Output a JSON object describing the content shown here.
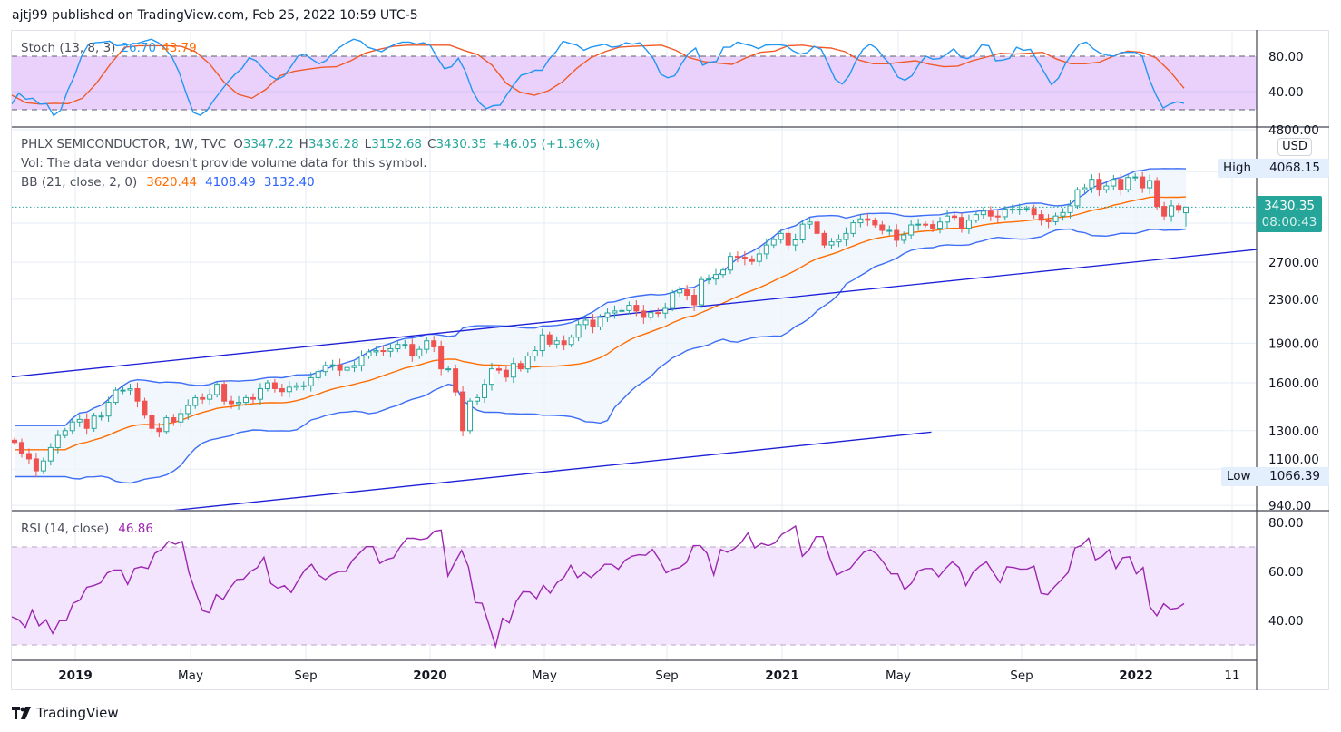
{
  "header": {
    "publisher_line": "ajtj99 published on TradingView.com, Feb 25, 2022 10:59 UTC-5"
  },
  "stoch": {
    "title": "Stoch (13, 8, 3)",
    "k_value": "26.70",
    "d_value": "43.79"
  },
  "main": {
    "symbol": "PHLX SEMICONDUCTOR, 1W, TVC",
    "o_label": "O",
    "o": "3347.22",
    "h_label": "H",
    "h": "3436.28",
    "l_label": "L",
    "l": "3152.68",
    "c_label": "C",
    "c": "3430.35",
    "change": "+46.05 (+1.36%)",
    "vol_note": "Vol: The data vendor doesn't provide volume data for this symbol.",
    "bb_title": "BB (21, close, 2, 0)",
    "bb_basis": "3620.44",
    "bb_upper": "4108.49",
    "bb_lower": "3132.40",
    "currency": "USD",
    "high_label": "High",
    "high_value": "4068.15",
    "low_label": "Low",
    "low_value": "1066.39",
    "last_price": "3430.35",
    "countdown": "08:00:43"
  },
  "rsi": {
    "title": "RSI (14, close)",
    "value": "46.86"
  },
  "time_axis": [
    {
      "label": "2019",
      "bold": true
    },
    {
      "label": "May"
    },
    {
      "label": "Sep"
    },
    {
      "label": "2020",
      "bold": true
    },
    {
      "label": "May"
    },
    {
      "label": "Sep"
    },
    {
      "label": "2021",
      "bold": true
    },
    {
      "label": "May"
    },
    {
      "label": "Sep"
    },
    {
      "label": "2022",
      "bold": true
    },
    {
      "label": "11"
    }
  ],
  "footer": {
    "brand": "TradingView"
  },
  "colors": {
    "up": "#26a69a",
    "down": "#ef5350",
    "bb_band": "#2962ff",
    "bb_basis": "#ff6d00",
    "stoch_k": "#2196f3",
    "stoch_d": "#ff6d00",
    "rsi": "#9c27b0",
    "trendline": "#1c1fd6"
  },
  "chart_data": [
    {
      "type": "candlestick",
      "title": "PHLX SEMICONDUCTOR, 1W, TVC",
      "scale": "log",
      "ylim": [
        940,
        4800
      ],
      "price_ticks": [
        "4800.00",
        "2700.00",
        "2300.00",
        "1900.00",
        "1600.00",
        "1300.00",
        "1100.00",
        "940.00"
      ],
      "grid_prices": [
        4800,
        4000,
        3200,
        2700,
        2300,
        1900,
        1600,
        1300,
        1100,
        940
      ],
      "x_range": "Nov 2018 – Feb 2022 (weekly)",
      "last_open": 3347.22,
      "last_high": 3436.28,
      "last_low": 3152.68,
      "closes": [
        1235,
        1177,
        1150,
        1092,
        1140,
        1208,
        1273,
        1300,
        1350,
        1365,
        1313,
        1385,
        1385,
        1470,
        1550,
        1550,
        1560,
        1478,
        1390,
        1313,
        1295,
        1375,
        1350,
        1400,
        1450,
        1500,
        1490,
        1520,
        1590,
        1478,
        1462,
        1470,
        1500,
        1490,
        1560,
        1600,
        1560,
        1540,
        1570,
        1580,
        1580,
        1636,
        1680,
        1725,
        1730,
        1690,
        1710,
        1725,
        1797,
        1830,
        1840,
        1835,
        1855,
        1890,
        1890,
        1797,
        1850,
        1920,
        1870,
        1700,
        1700,
        1538,
        1300,
        1478,
        1500,
        1590,
        1700,
        1690,
        1640,
        1740,
        1700,
        1797,
        1840,
        1970,
        1893,
        1920,
        1890,
        1950,
        2060,
        2100,
        2040,
        2125,
        2167,
        2185,
        2190,
        2240,
        2185,
        2125,
        2170,
        2165,
        2210,
        2365,
        2395,
        2340,
        2245,
        2505,
        2510,
        2560,
        2610,
        2770,
        2760,
        2740,
        2710,
        2800,
        2910,
        2980,
        3060,
        2910,
        2975,
        3185,
        3215,
        3060,
        2910,
        2950,
        2980,
        3060,
        3205,
        3260,
        3240,
        3175,
        3100,
        3100,
        2970,
        3040,
        3175,
        3185,
        3180,
        3130,
        3215,
        3300,
        3280,
        3130,
        3240,
        3320,
        3370,
        3300,
        3290,
        3400,
        3400,
        3400,
        3410,
        3320,
        3240,
        3220,
        3300,
        3350,
        3450,
        3700,
        3730,
        3870,
        3700,
        3760,
        3870,
        3700,
        3900,
        3910,
        3730,
        3850,
        3440,
        3300,
        3450,
        3384.3,
        3430.35
      ],
      "indicator": {
        "name": "BB",
        "length": 21,
        "mult": 2
      },
      "trendlines": [
        {
          "start_week": -0.4,
          "start_price": 1642,
          "end_week": 172.8,
          "end_price": 2863
        },
        {
          "start_week": 20.7,
          "start_price": 916,
          "end_week": 126.8,
          "end_price": 1292
        }
      ]
    },
    {
      "type": "line",
      "title": "Stoch (13, 8, 3)",
      "ylim": [
        0,
        100
      ],
      "axis_ticks": [
        "80.00",
        "40.00"
      ],
      "bands": [
        80,
        20
      ],
      "series": [
        {
          "name": "%K",
          "values": [
            25.8,
            38.3,
            31.5,
            32.5,
            25.8,
            26.4,
            12.9,
            19,
            41,
            58,
            80,
            93.6,
            95.3,
            96,
            97,
            91.9,
            92.5,
            93.6,
            94.6,
            97,
            99.3,
            95.3,
            88.5,
            78.3,
            61.4,
            37.6,
            16.6,
            13.2,
            19,
            30.8,
            41,
            51.2,
            59.7,
            66.4,
            78.3,
            74.9,
            66.4,
            58,
            53.6,
            57.3,
            68.1,
            80,
            82.4,
            76.6,
            71.5,
            74.9,
            83.4,
            90.2,
            95.3,
            99.3,
            97,
            90.2,
            87.8,
            85.1,
            90.2,
            93.6,
            96,
            96,
            93.6,
            95.3,
            91.9,
            78.3,
            65.8,
            68.1,
            77.6,
            63,
            41,
            27.5,
            20.7,
            24.1,
            24.7,
            37,
            48.5,
            58.6,
            60.7,
            64.1,
            64.1,
            76.6,
            85.1,
            97,
            94.6,
            92.5,
            86.8,
            90.2,
            91.9,
            93.6,
            90.2,
            91.2,
            95.3,
            93.6,
            95.3,
            86.8,
            76.6,
            59.7,
            55.6,
            58,
            71.5,
            83.4,
            89.2,
            69.8,
            73.2,
            74.2,
            90.2,
            90.2,
            96,
            93.6,
            91.9,
            88.5,
            92.5,
            92.9,
            92.9,
            91.9,
            85.8,
            82.4,
            84.1,
            91.2,
            87.8,
            71.5,
            53.9,
            48.5,
            58,
            74.9,
            87.8,
            93.6,
            88.5,
            78.3,
            69.8,
            56.3,
            52.9,
            58,
            70.8,
            80,
            76.6,
            77.3,
            82.4,
            88.5,
            79,
            77.3,
            81.7,
            92.9,
            91.9,
            74.9,
            75.6,
            77.6,
            90.2,
            86.8,
            87.8,
            74.9,
            61.4,
            47.8,
            55.3,
            71.5,
            83.4,
            93.6,
            96,
            88.5,
            83.4,
            81,
            80,
            84.4,
            84.4,
            84.4,
            80,
            54.6,
            35.9,
            21.4,
            25.8,
            28.5,
            26.7
          ]
        },
        {
          "name": "%D",
          "values": [
            36,
            27.5,
            25.8,
            26.8,
            26.4,
            32.5,
            49.5,
            71.5,
            90.2,
            91.9,
            91.9,
            91.9,
            91.2,
            85.1,
            71.5,
            51.2,
            37,
            32.5,
            42.7,
            58,
            63,
            65.4,
            67.5,
            68.1,
            74.9,
            83.4,
            87.8,
            91.2,
            92.5,
            92.5,
            92.5,
            92.5,
            86.8,
            81.7,
            69.8,
            49.5,
            39.3,
            35.9,
            41,
            51.2,
            66.4,
            78.3,
            85.1,
            90.2,
            91.2,
            91.9,
            92.5,
            86.8,
            78.3,
            73.9,
            72.2,
            70.8,
            78.3,
            84.4,
            85.8,
            91.9,
            92.5,
            90.2,
            89.2,
            85.1,
            75.6,
            71.5,
            71.5,
            73.2,
            74.9,
            70.8,
            68.1,
            68.8,
            74.9,
            79,
            83.4,
            82.4,
            83.4,
            84.4,
            76.6,
            71.5,
            71.5,
            73.2,
            80,
            85.8,
            84.4,
            78.3,
            63,
            43.79
          ]
        }
      ]
    },
    {
      "type": "line",
      "title": "RSI (14, close)",
      "ylim": [
        25,
        85
      ],
      "axis_ticks": [
        "80.00",
        "60.00",
        "40.00"
      ],
      "bands": [
        70,
        30
      ],
      "series": [
        {
          "name": "RSI",
          "values": [
            41.5,
            40.3,
            37.2,
            44.3,
            37.8,
            40.3,
            34.7,
            39.9,
            39.9,
            47,
            48.3,
            53.5,
            54.2,
            55.3,
            59.4,
            60.6,
            60.6,
            54.7,
            61.2,
            61.9,
            61.2,
            67.4,
            69,
            72.3,
            71.1,
            72.3,
            59.4,
            51.4,
            44,
            43.1,
            50.5,
            48.5,
            53.2,
            56.7,
            56.9,
            60,
            61.5,
            65.8,
            55.1,
            53.2,
            54.2,
            51.4,
            56.3,
            60.6,
            62.9,
            58.5,
            56.7,
            58.8,
            60,
            60,
            64.6,
            67.4,
            70.1,
            70.1,
            63.3,
            64.9,
            65.6,
            70.2,
            73.5,
            73.5,
            73,
            73.6,
            76.4,
            76.9,
            58.1,
            63.7,
            68.6,
            61.9,
            47.3,
            47,
            38.4,
            29.4,
            40.9,
            39,
            47.7,
            51.7,
            51.6,
            48.9,
            54.4,
            51.1,
            55.4,
            57.5,
            62.5,
            57.5,
            59.6,
            57.5,
            60,
            62.9,
            62.9,
            60.9,
            64.6,
            66.2,
            66.8,
            66.6,
            69,
            64.9,
            59.4,
            60.9,
            61.6,
            63.7,
            70.5,
            70.5,
            67.4,
            58.5,
            69,
            67.8,
            69.3,
            71.7,
            75.7,
            69.6,
            71.4,
            70.5,
            71.7,
            75.2,
            76.7,
            78.5,
            66.2,
            69,
            74.2,
            74.2,
            65.6,
            58.5,
            60,
            61.2,
            64.6,
            67.8,
            68.9,
            66.8,
            63.3,
            59,
            59,
            52.6,
            55.1,
            60.2,
            61.2,
            61.2,
            57.8,
            61.2,
            63.9,
            61.6,
            54.2,
            59.4,
            62.1,
            63.9,
            59.6,
            55.4,
            61.9,
            61.6,
            60.9,
            61,
            62.2,
            51.1,
            50.5,
            53.8,
            56.6,
            59.6,
            69.6,
            70.7,
            73.6,
            64.7,
            66.2,
            68.9,
            61.2,
            65.6,
            66,
            59,
            61.6,
            45.6,
            41.9,
            46.8,
            44.6,
            45,
            46.86
          ]
        }
      ]
    }
  ]
}
